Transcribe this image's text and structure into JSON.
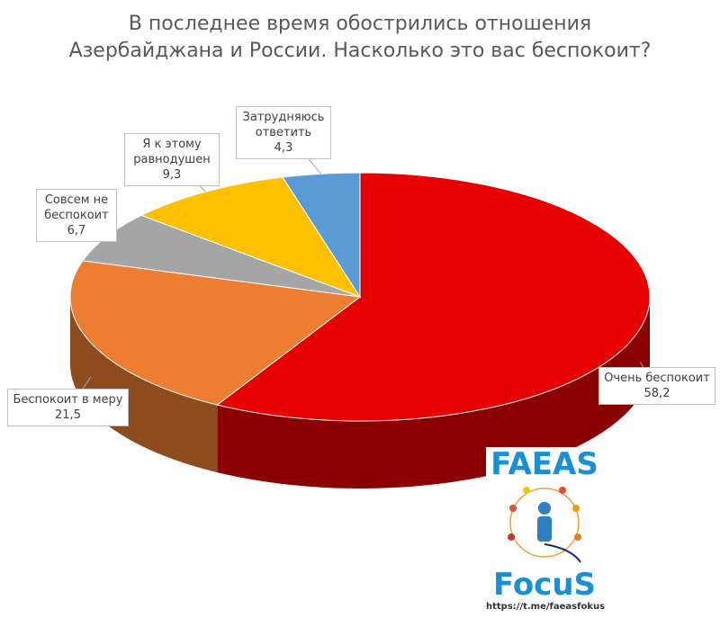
{
  "chart_data": {
    "type": "pie",
    "title": [
      "В последнее время обострились отношения",
      "Азербайджана и России. Насколько это вас беспокоит?"
    ],
    "categories": [
      "Очень беспокоит",
      "Беспокоит в меру",
      "Совсем не беспокоит",
      "Я к этому равнодушен",
      "Затрудняюсь ответить"
    ],
    "values": [
      58.2,
      21.5,
      6.7,
      9.3,
      4.3
    ],
    "value_labels": [
      "58,2",
      "21,5",
      "6,7",
      "9,3",
      "4,3"
    ],
    "colors": [
      "#e60000",
      "#ed7d31",
      "#a5a5a5",
      "#ffc000",
      "#5b9bd5"
    ]
  },
  "logo": {
    "top": "FAEAS",
    "bottom": "FocuS",
    "url": "https://t.me/faeasfokus"
  }
}
